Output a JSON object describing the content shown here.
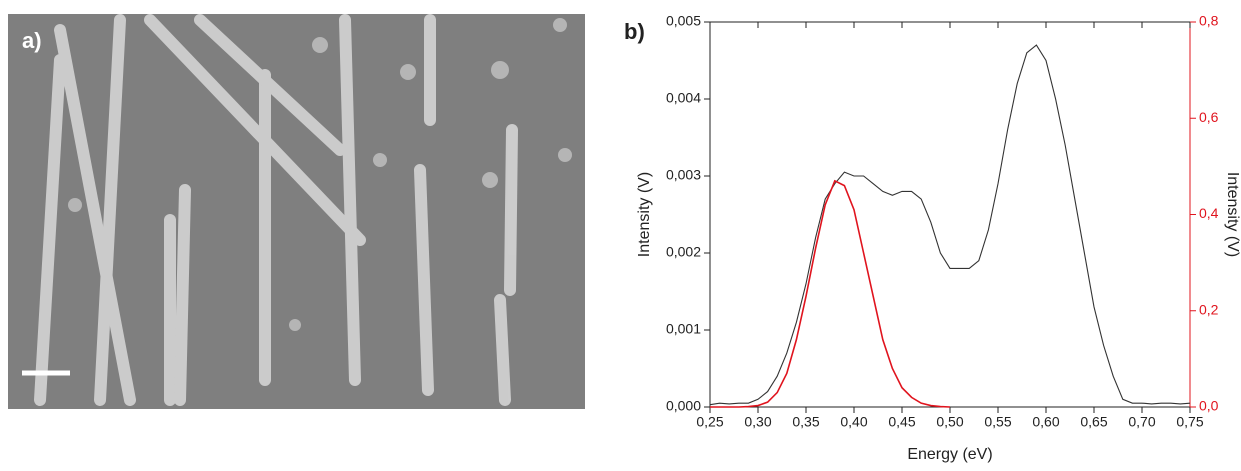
{
  "panel_labels": [
    "a)",
    "b)"
  ],
  "chart_data": {
    "type": "line",
    "x_label": "Energy (eV)",
    "y_label": "Intensity (V)",
    "y2_label": "Intensity (V)",
    "x": [
      0.25,
      0.26,
      0.27,
      0.28,
      0.29,
      0.3,
      0.31,
      0.32,
      0.33,
      0.34,
      0.35,
      0.36,
      0.37,
      0.38,
      0.39,
      0.4,
      0.41,
      0.42,
      0.43,
      0.44,
      0.45,
      0.46,
      0.47,
      0.48,
      0.49,
      0.5,
      0.51,
      0.52,
      0.53,
      0.54,
      0.55,
      0.56,
      0.57,
      0.58,
      0.59,
      0.6,
      0.61,
      0.62,
      0.63,
      0.64,
      0.65,
      0.66,
      0.67,
      0.68,
      0.69,
      0.7,
      0.71,
      0.72,
      0.73,
      0.74,
      0.75
    ],
    "series": [
      {
        "color": "#333333",
        "values": [
          3e-05,
          5e-05,
          4e-05,
          5e-05,
          5e-05,
          0.0001,
          0.0002,
          0.0004,
          0.0007,
          0.0011,
          0.0016,
          0.0022,
          0.0027,
          0.0029,
          0.00305,
          0.003,
          0.003,
          0.0029,
          0.0028,
          0.00275,
          0.0028,
          0.0028,
          0.0027,
          0.0024,
          0.002,
          0.0018,
          0.0018,
          0.0018,
          0.0019,
          0.0023,
          0.0029,
          0.0036,
          0.0042,
          0.0046,
          0.0047,
          0.0045,
          0.004,
          0.0034,
          0.0027,
          0.002,
          0.0013,
          0.0008,
          0.0004,
          0.0001,
          5e-05,
          5e-05,
          4e-05,
          5e-05,
          5e-05,
          4e-05,
          5e-05
        ]
      },
      {
        "color": "#e0141e",
        "axis": "y2",
        "values": [
          0,
          0,
          0,
          0,
          0.001,
          0.003,
          0.01,
          0.03,
          0.07,
          0.14,
          0.23,
          0.33,
          0.42,
          0.47,
          0.46,
          0.41,
          0.32,
          0.23,
          0.14,
          0.08,
          0.04,
          0.02,
          0.008,
          0.003,
          0.001,
          0,
          null,
          null,
          null,
          null,
          null,
          null,
          null,
          null,
          null,
          null,
          null,
          null,
          null,
          null,
          null,
          null,
          null,
          null,
          null,
          null,
          null,
          null,
          null,
          null,
          null
        ]
      }
    ],
    "xlim": [
      0.25,
      0.75
    ],
    "xticks": [
      {
        "value": 0.25,
        "label": "0,25"
      },
      {
        "value": 0.3,
        "label": "0,30"
      },
      {
        "value": 0.35,
        "label": "0,35"
      },
      {
        "value": 0.4,
        "label": "0,40"
      },
      {
        "value": 0.45,
        "label": "0,45"
      },
      {
        "value": 0.5,
        "label": "0,50"
      },
      {
        "value": 0.55,
        "label": "0,55"
      },
      {
        "value": 0.6,
        "label": "0,60"
      },
      {
        "value": 0.65,
        "label": "0,65"
      },
      {
        "value": 0.7,
        "label": "0,70"
      },
      {
        "value": 0.75,
        "label": "0,75"
      }
    ],
    "ylim": [
      0,
      0.005
    ],
    "yticks": [
      {
        "value": 0,
        "label": "0,000"
      },
      {
        "value": 0.001,
        "label": "0,001"
      },
      {
        "value": 0.002,
        "label": "0,002"
      },
      {
        "value": 0.003,
        "label": "0,003"
      },
      {
        "value": 0.004,
        "label": "0,004"
      },
      {
        "value": 0.005,
        "label": "0,005"
      }
    ],
    "y2lim": [
      0,
      0.8
    ],
    "y2ticks": [
      {
        "value": 0,
        "label": "0,0"
      },
      {
        "value": 0.2,
        "label": "0,2"
      },
      {
        "value": 0.4,
        "label": "0,4"
      },
      {
        "value": 0.6,
        "label": "0,6"
      },
      {
        "value": 0.8,
        "label": "0,8"
      }
    ],
    "y2_color": "#e0141e"
  }
}
